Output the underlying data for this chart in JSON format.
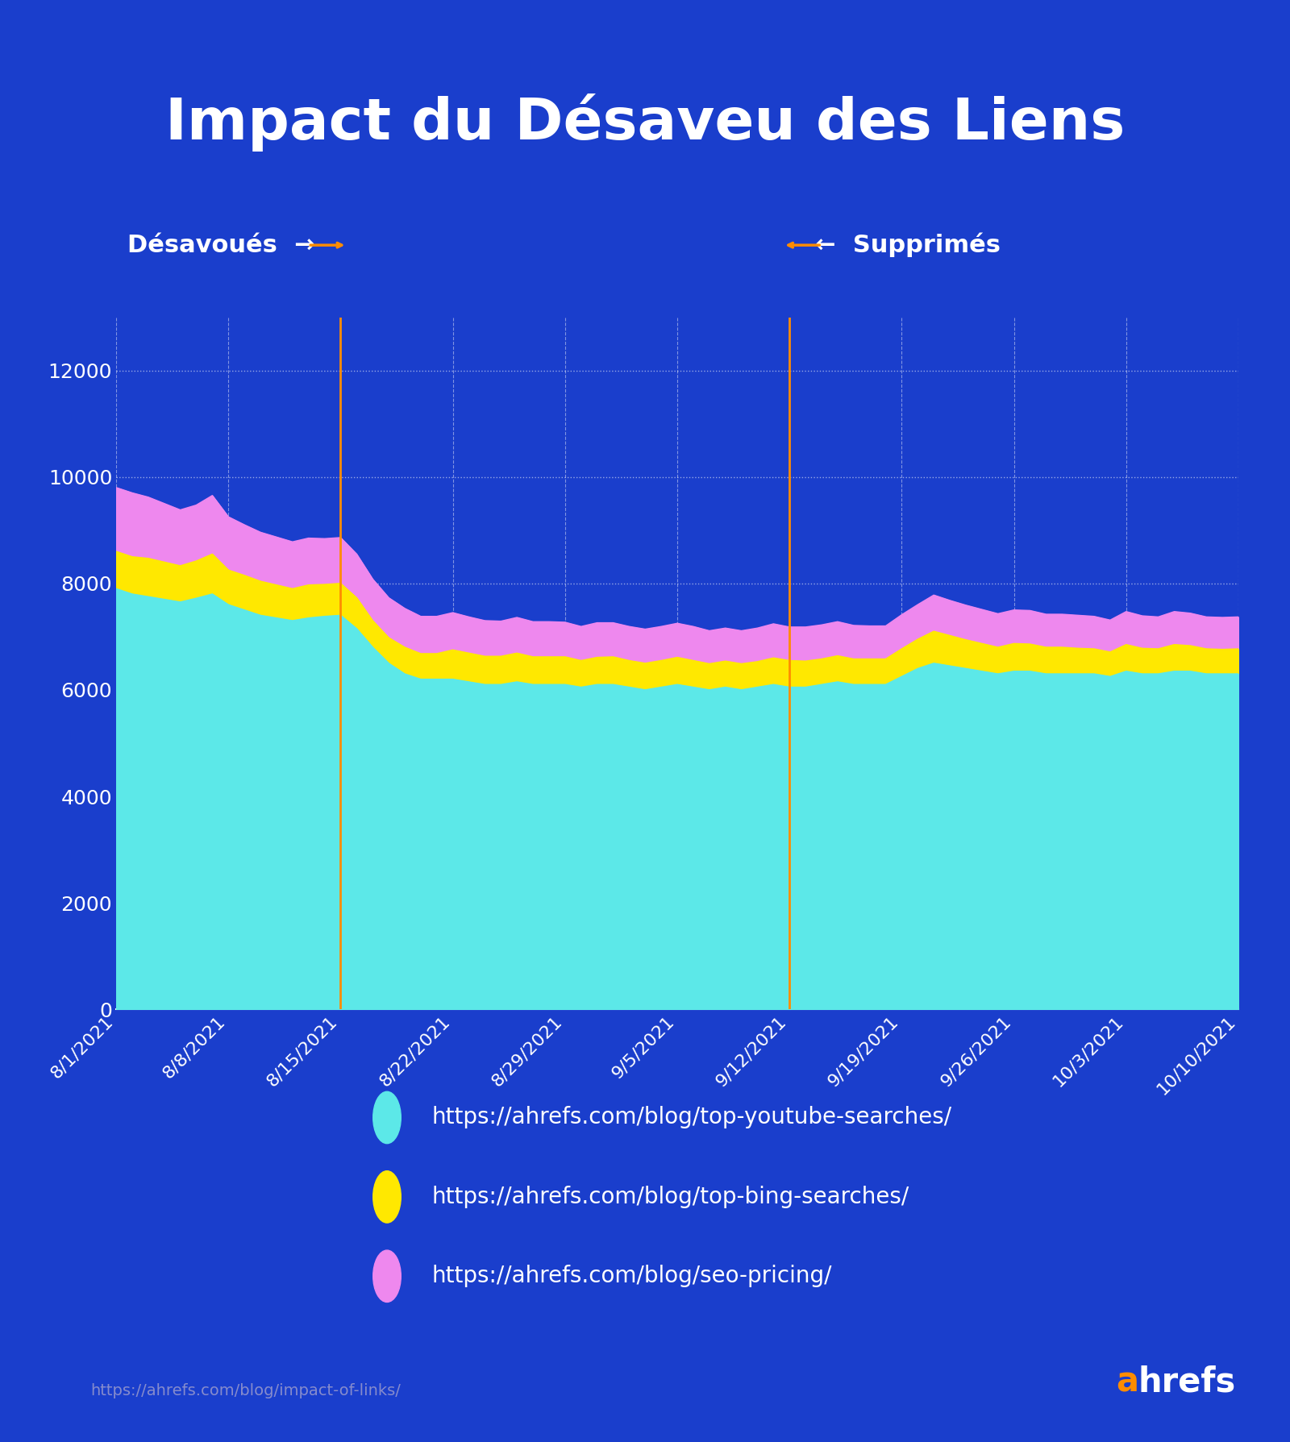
{
  "title": "Impact du Désaveu des Liens",
  "background_color": "#1A3ECC",
  "text_color": "#FFFFFF",
  "grid_color": "#FFFFFF",
  "vline_color": "#FF8C00",
  "dates": [
    "8/1/2021",
    "8/2/2021",
    "8/3/2021",
    "8/4/2021",
    "8/5/2021",
    "8/6/2021",
    "8/7/2021",
    "8/8/2021",
    "8/9/2021",
    "8/10/2021",
    "8/11/2021",
    "8/12/2021",
    "8/13/2021",
    "8/14/2021",
    "8/15/2021",
    "8/16/2021",
    "8/17/2021",
    "8/18/2021",
    "8/19/2021",
    "8/20/2021",
    "8/21/2021",
    "8/22/2021",
    "8/23/2021",
    "8/24/2021",
    "8/25/2021",
    "8/26/2021",
    "8/27/2021",
    "8/28/2021",
    "8/29/2021",
    "8/30/2021",
    "8/31/2021",
    "9/1/2021",
    "9/2/2021",
    "9/3/2021",
    "9/4/2021",
    "9/5/2021",
    "9/6/2021",
    "9/7/2021",
    "9/8/2021",
    "9/9/2021",
    "9/10/2021",
    "9/11/2021",
    "9/12/2021",
    "9/13/2021",
    "9/14/2021",
    "9/15/2021",
    "9/16/2021",
    "9/17/2021",
    "9/18/2021",
    "9/19/2021",
    "9/20/2021",
    "9/21/2021",
    "9/22/2021",
    "9/23/2021",
    "9/24/2021",
    "9/25/2021",
    "9/26/2021",
    "9/27/2021",
    "9/28/2021",
    "9/29/2021",
    "9/30/2021",
    "10/1/2021",
    "10/2/2021",
    "10/3/2021",
    "10/4/2021",
    "10/5/2021",
    "10/6/2021",
    "10/7/2021",
    "10/8/2021",
    "10/9/2021",
    "10/10/2021"
  ],
  "youtube_searches": [
    7900,
    7800,
    7750,
    7700,
    7650,
    7720,
    7800,
    7600,
    7500,
    7400,
    7350,
    7300,
    7350,
    7380,
    7400,
    7150,
    6800,
    6500,
    6300,
    6200,
    6200,
    6200,
    6150,
    6100,
    6100,
    6150,
    6100,
    6100,
    6100,
    6050,
    6100,
    6100,
    6050,
    6000,
    6050,
    6100,
    6050,
    6000,
    6050,
    6000,
    6050,
    6100,
    6050,
    6050,
    6100,
    6150,
    6100,
    6100,
    6100,
    6250,
    6400,
    6500,
    6450,
    6400,
    6350,
    6300,
    6350,
    6350,
    6300,
    6300,
    6300,
    6300,
    6250,
    6350,
    6300,
    6300,
    6350,
    6350,
    6300,
    6300,
    6300
  ],
  "bing_searches": [
    700,
    700,
    720,
    700,
    680,
    700,
    750,
    650,
    650,
    640,
    620,
    600,
    620,
    600,
    600,
    580,
    500,
    480,
    500,
    480,
    480,
    550,
    540,
    530,
    530,
    540,
    520,
    520,
    520,
    500,
    510,
    520,
    500,
    500,
    500,
    510,
    500,
    490,
    490,
    490,
    480,
    500,
    500,
    490,
    480,
    490,
    480,
    480,
    480,
    520,
    550,
    600,
    570,
    540,
    520,
    500,
    520,
    510,
    500,
    500,
    480,
    470,
    460,
    500,
    480,
    470,
    500,
    480,
    470,
    460,
    470
  ],
  "seo_pricing": [
    1200,
    1200,
    1150,
    1100,
    1050,
    1050,
    1100,
    1000,
    950,
    920,
    900,
    880,
    880,
    860,
    860,
    820,
    780,
    750,
    730,
    700,
    700,
    700,
    680,
    670,
    660,
    670,
    660,
    660,
    650,
    640,
    650,
    640,
    640,
    640,
    640,
    640,
    640,
    620,
    620,
    620,
    630,
    640,
    630,
    640,
    640,
    640,
    630,
    620,
    620,
    640,
    650,
    680,
    660,
    650,
    640,
    630,
    630,
    630,
    620,
    620,
    620,
    610,
    600,
    620,
    610,
    600,
    620,
    610,
    600,
    600,
    600
  ],
  "vline1_idx": 14,
  "vline2_idx": 42,
  "vline1_label": "Désavoués",
  "vline2_label": "Supprimés",
  "yticks": [
    0,
    2000,
    4000,
    6000,
    8000,
    10000,
    12000
  ],
  "xtick_dates": [
    "8/1/2021",
    "8/8/2021",
    "8/15/2021",
    "8/22/2021",
    "8/29/2021",
    "9/5/2021",
    "9/12/2021",
    "9/19/2021",
    "9/26/2021",
    "10/3/2021",
    "10/10/2021"
  ],
  "legend_items": [
    {
      "label": "https://ahrefs.com/blog/top-youtube-searches/",
      "color": "#5CE8E8"
    },
    {
      "label": "https://ahrefs.com/blog/top-bing-searches/",
      "color": "#FFE800"
    },
    {
      "label": "https://ahrefs.com/blog/seo-pricing/",
      "color": "#EE88EE"
    }
  ],
  "footer_url": "https://ahrefs.com/blog/impact-of-links/",
  "ahrefs_color_a": "#FF8C00",
  "ahrefs_color_hrefs": "#FFFFFF",
  "ylim": [
    0,
    13000
  ],
  "title_fontsize": 52,
  "annot_fontsize": 22,
  "tick_fontsize": 18,
  "legend_fontsize": 20
}
